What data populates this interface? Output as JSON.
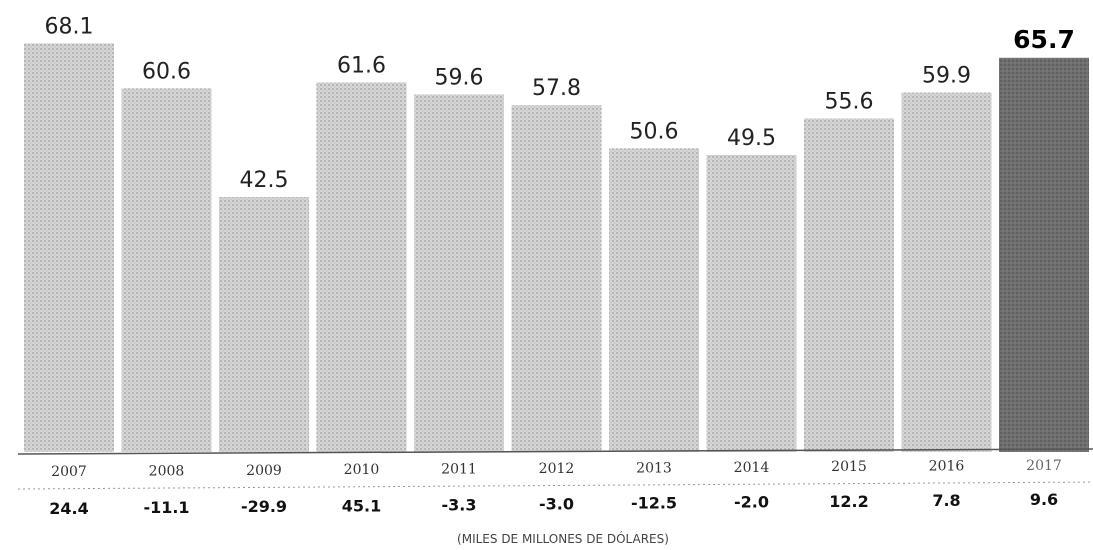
{
  "chart_data": {
    "type": "bar",
    "categories": [
      "2007",
      "2008",
      "2009",
      "2010",
      "2011",
      "2012",
      "2013",
      "2014",
      "2015",
      "2016",
      "2017"
    ],
    "values": [
      68.1,
      60.6,
      42.5,
      61.6,
      59.6,
      57.8,
      50.6,
      49.5,
      55.6,
      59.9,
      65.7
    ],
    "value_labels": [
      "68.1",
      "60.6",
      "42.5",
      "61.6",
      "59.6",
      "57.8",
      "50.6",
      "49.5",
      "55.6",
      "59.9",
      "65.7"
    ],
    "change_labels": [
      "24.4",
      "-11.1",
      "-29.9",
      "45.1",
      "-3.3",
      "-3.0",
      "-12.5",
      "-2.0",
      "12.2",
      "7.8",
      "9.6"
    ],
    "unit_note": "(MILES DE MILLONES DE DÓLARES)",
    "highlight_index": 10,
    "colors": {
      "bar": "#c9c9c9",
      "bar_highlight": "#7a7a7a",
      "axis": "#333333"
    },
    "grid": false,
    "ylim": [
      0,
      70
    ]
  }
}
